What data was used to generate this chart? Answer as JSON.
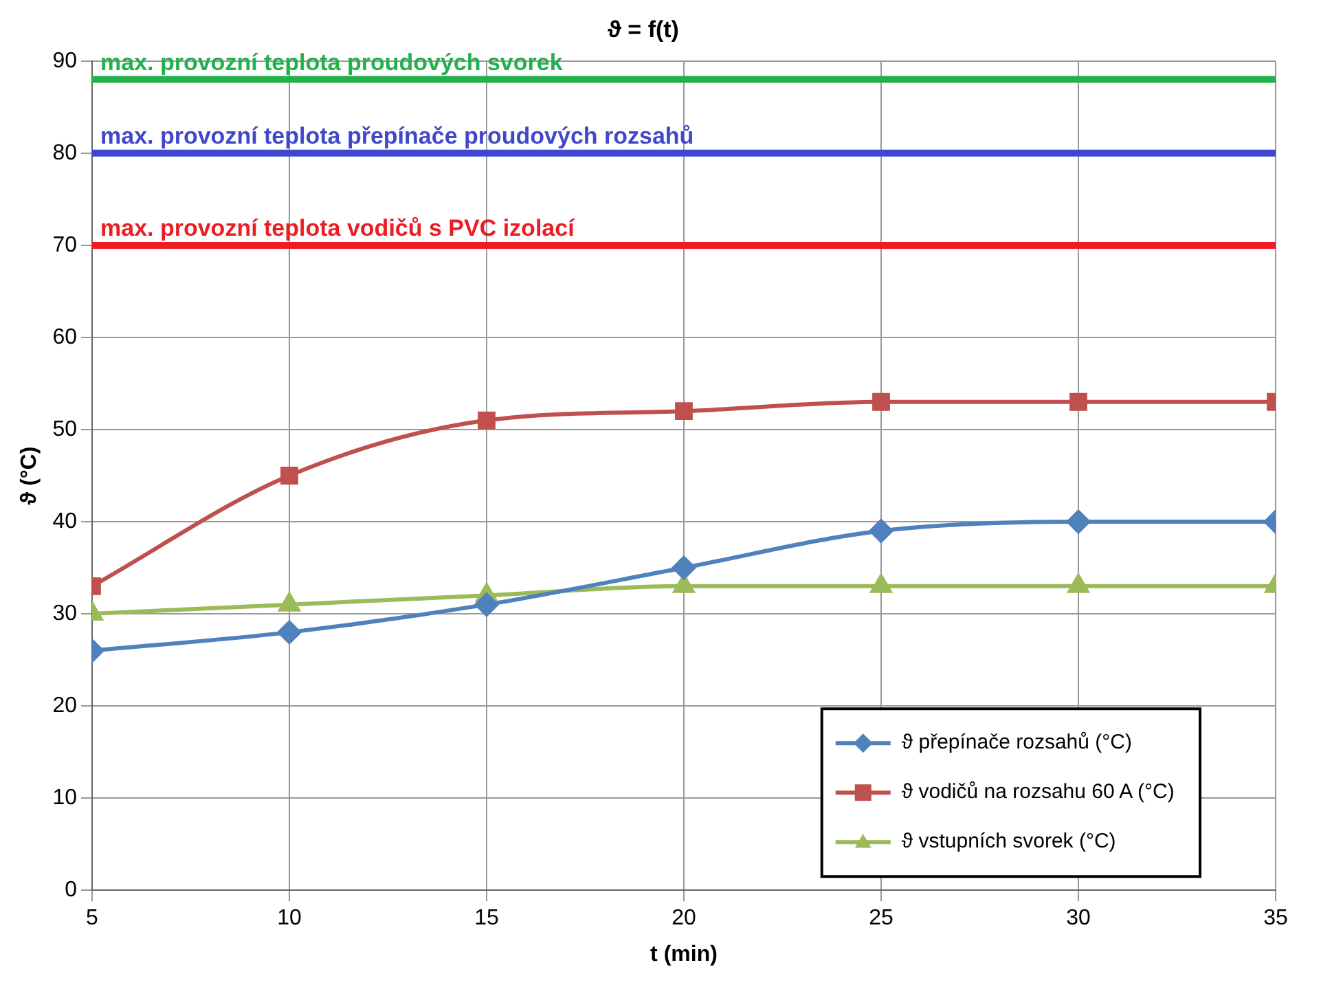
{
  "chart_data": {
    "type": "line",
    "title": "ϑ = f(t)",
    "xlabel": "t (min)",
    "ylabel": "ϑ (°C)",
    "x": [
      5,
      10,
      15,
      20,
      25,
      30,
      35
    ],
    "xlim": [
      5,
      35
    ],
    "xticks": [
      5,
      10,
      15,
      20,
      25,
      30,
      35
    ],
    "ylim": [
      0,
      90
    ],
    "yticks": [
      0,
      10,
      20,
      30,
      40,
      50,
      60,
      70,
      80,
      90
    ],
    "grid": true,
    "legend": "bottom right",
    "line_style": "solid",
    "series": [
      {
        "name": "ϑ přepínače rozsahů (°C)",
        "color": "#4f81bd",
        "marker": "diamond",
        "values": [
          26,
          28,
          31,
          35,
          39,
          40,
          40
        ]
      },
      {
        "name": "ϑ vodičů na rozsahu 60 A (°C)",
        "color": "#c0504d",
        "marker": "square",
        "values": [
          33,
          45,
          51,
          52,
          53,
          53,
          53
        ]
      },
      {
        "name": "ϑ vstupních svorek (°C)",
        "color": "#9bbb59",
        "marker": "triangle",
        "values": [
          30,
          31,
          32,
          33,
          33,
          33,
          33
        ]
      }
    ],
    "ref_lines": [
      {
        "axis": "y",
        "value": 88,
        "label": "max. provozní teplota proudových svorek",
        "color": "#22b14c"
      },
      {
        "axis": "y",
        "value": 80,
        "label": "max. provozní teplota přepínače proudových rozsahů",
        "color": "#3f48cc"
      },
      {
        "axis": "y",
        "value": 70,
        "label": "max. provozní teplota vodičů s PVC izolací",
        "color": "#ed1c24"
      }
    ]
  }
}
